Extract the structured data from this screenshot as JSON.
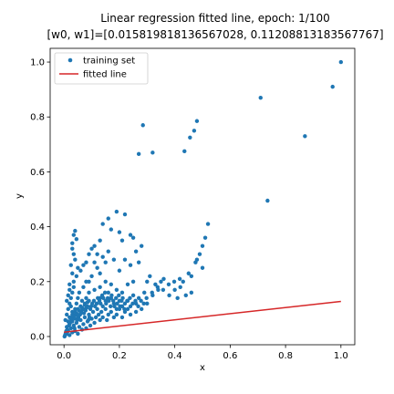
{
  "chart_data": {
    "type": "scatter",
    "title_line1": "Linear regression fitted line, epoch: 1/100",
    "title_line2": "[w0, w1]=[0.015819818136567028, 0.11208813183567767]",
    "xlabel": "x",
    "ylabel": "y",
    "xlim": [
      -0.05,
      1.05
    ],
    "ylim": [
      -0.03,
      1.05
    ],
    "xticks": [
      0.0,
      0.2,
      0.4,
      0.6,
      0.8,
      1.0
    ],
    "xtick_labels": [
      "0.0",
      "0.2",
      "0.4",
      "0.6",
      "0.8",
      "1.0"
    ],
    "yticks": [
      0.0,
      0.2,
      0.4,
      0.6,
      0.8,
      1.0
    ],
    "ytick_labels": [
      "0.0",
      "0.2",
      "0.4",
      "0.6",
      "0.8",
      "1.0"
    ],
    "legend": {
      "placement": "upper-left",
      "entries": [
        "training set",
        "fitted line"
      ]
    },
    "colors": {
      "points": "#1f77b4",
      "line": "#d62728"
    },
    "fitted_line": {
      "w0": 0.015819818136567028,
      "w1": 0.11208813183567767
    },
    "series": [
      {
        "name": "training set",
        "points": [
          [
            1.0,
            1.0
          ],
          [
            0.97,
            0.91
          ],
          [
            0.71,
            0.87
          ],
          [
            0.87,
            0.73
          ],
          [
            0.735,
            0.495
          ],
          [
            0.285,
            0.77
          ],
          [
            0.32,
            0.67
          ],
          [
            0.27,
            0.665
          ],
          [
            0.48,
            0.785
          ],
          [
            0.47,
            0.75
          ],
          [
            0.455,
            0.725
          ],
          [
            0.435,
            0.675
          ],
          [
            0.52,
            0.41
          ],
          [
            0.51,
            0.36
          ],
          [
            0.5,
            0.33
          ],
          [
            0.49,
            0.3
          ],
          [
            0.475,
            0.27
          ],
          [
            0.45,
            0.23
          ],
          [
            0.46,
            0.22
          ],
          [
            0.44,
            0.15
          ],
          [
            0.46,
            0.16
          ],
          [
            0.5,
            0.25
          ],
          [
            0.48,
            0.28
          ],
          [
            0.19,
            0.455
          ],
          [
            0.22,
            0.445
          ],
          [
            0.16,
            0.43
          ],
          [
            0.14,
            0.41
          ],
          [
            0.17,
            0.39
          ],
          [
            0.2,
            0.38
          ],
          [
            0.24,
            0.37
          ],
          [
            0.25,
            0.36
          ],
          [
            0.21,
            0.35
          ],
          [
            0.13,
            0.35
          ],
          [
            0.11,
            0.33
          ],
          [
            0.04,
            0.385
          ],
          [
            0.035,
            0.37
          ],
          [
            0.045,
            0.355
          ],
          [
            0.03,
            0.34
          ],
          [
            0.03,
            0.32
          ],
          [
            0.035,
            0.3
          ],
          [
            0.04,
            0.28
          ],
          [
            0.025,
            0.26
          ],
          [
            0.05,
            0.25
          ],
          [
            0.03,
            0.23
          ],
          [
            0.045,
            0.22
          ],
          [
            0.035,
            0.2
          ],
          [
            0.06,
            0.24
          ],
          [
            0.07,
            0.26
          ],
          [
            0.08,
            0.27
          ],
          [
            0.09,
            0.3
          ],
          [
            0.1,
            0.32
          ],
          [
            0.09,
            0.2
          ],
          [
            0.1,
            0.22
          ],
          [
            0.12,
            0.3
          ],
          [
            0.11,
            0.27
          ],
          [
            0.12,
            0.25
          ],
          [
            0.13,
            0.23
          ],
          [
            0.15,
            0.27
          ],
          [
            0.14,
            0.29
          ],
          [
            0.16,
            0.31
          ],
          [
            0.18,
            0.28
          ],
          [
            0.2,
            0.24
          ],
          [
            0.22,
            0.28
          ],
          [
            0.24,
            0.26
          ],
          [
            0.26,
            0.31
          ],
          [
            0.28,
            0.33
          ],
          [
            0.27,
            0.27
          ],
          [
            0.25,
            0.2
          ],
          [
            0.23,
            0.19
          ],
          [
            0.21,
            0.16
          ],
          [
            0.19,
            0.17
          ],
          [
            0.17,
            0.19
          ],
          [
            0.15,
            0.2
          ],
          [
            0.13,
            0.18
          ],
          [
            0.11,
            0.17
          ],
          [
            0.09,
            0.16
          ],
          [
            0.08,
            0.2
          ],
          [
            0.07,
            0.18
          ],
          [
            0.3,
            0.2
          ],
          [
            0.31,
            0.22
          ],
          [
            0.33,
            0.19
          ],
          [
            0.35,
            0.2
          ],
          [
            0.36,
            0.21
          ],
          [
            0.34,
            0.17
          ],
          [
            0.32,
            0.15
          ],
          [
            0.29,
            0.16
          ],
          [
            0.3,
            0.12
          ],
          [
            0.28,
            0.1
          ],
          [
            0.26,
            0.12
          ],
          [
            0.24,
            0.11
          ],
          [
            0.22,
            0.09
          ],
          [
            0.27,
            0.14
          ],
          [
            0.25,
            0.15
          ],
          [
            0.23,
            0.13
          ],
          [
            0.2,
            0.13
          ],
          [
            0.18,
            0.12
          ],
          [
            0.19,
            0.1
          ],
          [
            0.21,
            0.11
          ],
          [
            0.17,
            0.14
          ],
          [
            0.16,
            0.16
          ],
          [
            0.15,
            0.13
          ],
          [
            0.14,
            0.11
          ],
          [
            0.13,
            0.14
          ],
          [
            0.01,
            0.01
          ],
          [
            0.015,
            0.02
          ],
          [
            0.02,
            0.005
          ],
          [
            0.025,
            0.03
          ],
          [
            0.03,
            0.015
          ],
          [
            0.035,
            0.04
          ],
          [
            0.04,
            0.02
          ],
          [
            0.045,
            0.05
          ],
          [
            0.05,
            0.01
          ],
          [
            0.055,
            0.035
          ],
          [
            0.06,
            0.06
          ],
          [
            0.065,
            0.025
          ],
          [
            0.07,
            0.045
          ],
          [
            0.075,
            0.07
          ],
          [
            0.08,
            0.03
          ],
          [
            0.085,
            0.055
          ],
          [
            0.09,
            0.08
          ],
          [
            0.095,
            0.04
          ],
          [
            0.1,
            0.065
          ],
          [
            0.105,
            0.09
          ],
          [
            0.005,
            0.06
          ],
          [
            0.01,
            0.08
          ],
          [
            0.015,
            0.1
          ],
          [
            0.02,
            0.12
          ],
          [
            0.025,
            0.14
          ],
          [
            0.03,
            0.16
          ],
          [
            0.035,
            0.18
          ],
          [
            0.01,
            0.13
          ],
          [
            0.015,
            0.15
          ],
          [
            0.02,
            0.17
          ],
          [
            0.02,
            0.19
          ],
          [
            0.025,
            0.11
          ],
          [
            0.03,
            0.09
          ],
          [
            0.04,
            0.1
          ],
          [
            0.045,
            0.12
          ],
          [
            0.05,
            0.14
          ],
          [
            0.055,
            0.16
          ],
          [
            0.06,
            0.11
          ],
          [
            0.065,
            0.13
          ],
          [
            0.07,
            0.1
          ],
          [
            0.075,
            0.12
          ],
          [
            0.08,
            0.14
          ],
          [
            0.085,
            0.11
          ],
          [
            0.09,
            0.13
          ],
          [
            0.095,
            0.1
          ],
          [
            0.11,
            0.05
          ],
          [
            0.115,
            0.07
          ],
          [
            0.12,
            0.1
          ],
          [
            0.125,
            0.08
          ],
          [
            0.13,
            0.06
          ],
          [
            0.135,
            0.09
          ],
          [
            0.14,
            0.07
          ],
          [
            0.15,
            0.1
          ],
          [
            0.155,
            0.06
          ],
          [
            0.16,
            0.08
          ],
          [
            0.17,
            0.09
          ],
          [
            0.18,
            0.07
          ],
          [
            0.19,
            0.08
          ],
          [
            0.2,
            0.1
          ],
          [
            0.21,
            0.07
          ],
          [
            0.22,
            0.12
          ],
          [
            0.23,
            0.1
          ],
          [
            0.24,
            0.08
          ],
          [
            0.26,
            0.09
          ],
          [
            0.002,
            0.0
          ],
          [
            0.004,
            0.005
          ],
          [
            0.006,
            0.012
          ],
          [
            0.008,
            0.02
          ],
          [
            0.012,
            0.025
          ],
          [
            0.018,
            0.04
          ],
          [
            0.022,
            0.05
          ],
          [
            0.028,
            0.06
          ],
          [
            0.032,
            0.07
          ],
          [
            0.038,
            0.03
          ],
          [
            0.042,
            0.08
          ],
          [
            0.048,
            0.06
          ],
          [
            0.052,
            0.07
          ],
          [
            0.058,
            0.08
          ],
          [
            0.062,
            0.09
          ],
          [
            0.068,
            0.1
          ],
          [
            0.072,
            0.085
          ],
          [
            0.078,
            0.095
          ],
          [
            0.082,
            0.105
          ],
          [
            0.088,
            0.06
          ],
          [
            0.092,
            0.07
          ],
          [
            0.098,
            0.11
          ],
          [
            0.102,
            0.12
          ],
          [
            0.108,
            0.13
          ],
          [
            0.112,
            0.11
          ],
          [
            0.118,
            0.12
          ],
          [
            0.122,
            0.14
          ],
          [
            0.128,
            0.13
          ],
          [
            0.132,
            0.12
          ],
          [
            0.138,
            0.15
          ],
          [
            0.142,
            0.14
          ],
          [
            0.148,
            0.16
          ],
          [
            0.152,
            0.12
          ],
          [
            0.158,
            0.14
          ],
          [
            0.162,
            0.13
          ],
          [
            0.168,
            0.11
          ],
          [
            0.172,
            0.15
          ],
          [
            0.178,
            0.13
          ],
          [
            0.182,
            0.11
          ],
          [
            0.188,
            0.14
          ],
          [
            0.192,
            0.12
          ],
          [
            0.198,
            0.15
          ],
          [
            0.202,
            0.11
          ],
          [
            0.208,
            0.13
          ],
          [
            0.212,
            0.14
          ],
          [
            0.218,
            0.1
          ],
          [
            0.228,
            0.13
          ],
          [
            0.238,
            0.14
          ],
          [
            0.248,
            0.12
          ],
          [
            0.258,
            0.13
          ],
          [
            0.268,
            0.11
          ],
          [
            0.278,
            0.13
          ],
          [
            0.288,
            0.12
          ],
          [
            0.298,
            0.14
          ],
          [
            0.318,
            0.16
          ],
          [
            0.338,
            0.18
          ],
          [
            0.358,
            0.17
          ],
          [
            0.378,
            0.19
          ],
          [
            0.398,
            0.2
          ],
          [
            0.418,
            0.21
          ],
          [
            0.38,
            0.15
          ],
          [
            0.4,
            0.17
          ],
          [
            0.42,
            0.18
          ],
          [
            0.43,
            0.2
          ],
          [
            0.41,
            0.14
          ],
          [
            0.01,
            0.035
          ],
          [
            0.02,
            0.045
          ],
          [
            0.03,
            0.055
          ],
          [
            0.04,
            0.065
          ],
          [
            0.05,
            0.075
          ],
          [
            0.06,
            0.085
          ],
          [
            0.02,
            0.07
          ],
          [
            0.03,
            0.08
          ],
          [
            0.04,
            0.09
          ],
          [
            0.05,
            0.1
          ],
          [
            0.015,
            0.055
          ],
          [
            0.025,
            0.065
          ],
          [
            0.035,
            0.075
          ],
          [
            0.045,
            0.085
          ],
          [
            0.055,
            0.095
          ],
          [
            0.065,
            0.105
          ],
          [
            0.075,
            0.115
          ],
          [
            0.085,
            0.125
          ]
        ]
      }
    ]
  }
}
